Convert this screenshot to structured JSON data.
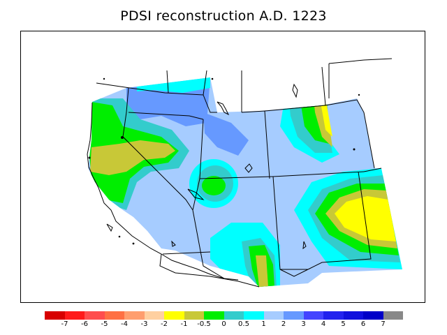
{
  "title": "PDSI reconstruction A.D. 1223",
  "colorbar": {
    "colors": [
      "#d70000",
      "#ff1a1a",
      "#ff4d4d",
      "#ff7043",
      "#ff9e6e",
      "#ffd0a0",
      "#ffff00",
      "#c8c837",
      "#00ee00",
      "#33cccc",
      "#00ffff",
      "#a6ccff",
      "#6699ff",
      "#4444ff",
      "#2222ee",
      "#1010dd",
      "#0000c8",
      "#888888"
    ],
    "labels": [
      "-7",
      "-6",
      "-5",
      "-4",
      "-3",
      "-2",
      "-1",
      "-0.5",
      "0",
      "0.5",
      "1",
      "2",
      "3",
      "4",
      "5",
      "6",
      "7"
    ]
  }
}
